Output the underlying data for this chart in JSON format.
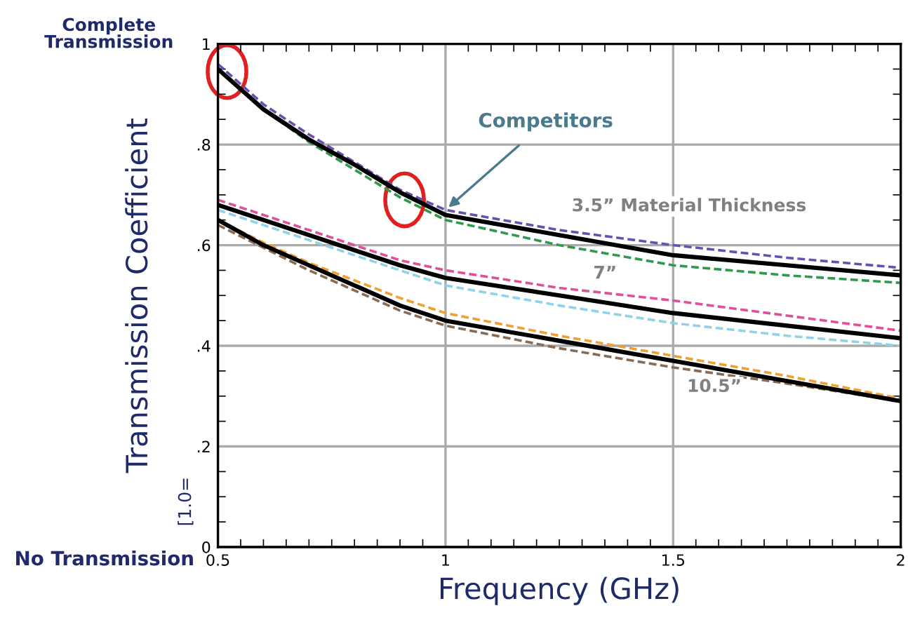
{
  "chart_data": {
    "type": "line",
    "xlabel": "Frequency (GHz)",
    "ylabel": "Transmission Coefficient",
    "x": [
      0.5,
      0.6,
      0.7,
      0.8,
      0.9,
      1.0,
      1.25,
      1.5,
      1.75,
      2.0
    ],
    "xlim": [
      0.5,
      2
    ],
    "ylim": [
      0,
      1
    ],
    "xticks": [
      0.5,
      1,
      1.5,
      2
    ],
    "yticks": [
      0,
      {
        "value": 0.2,
        "label": ".2"
      },
      {
        "value": 0.4,
        "label": ".4"
      },
      {
        "value": 0.6,
        "label": ".6"
      },
      {
        "value": 0.8,
        "label": ".8"
      },
      1
    ],
    "grid": true,
    "legend": false,
    "marker": "none",
    "series": [
      {
        "color": "#6a4fb0",
        "line_style": "dashed",
        "values": [
          0.96,
          0.88,
          0.82,
          0.765,
          0.71,
          0.67,
          0.63,
          0.6,
          0.575,
          0.555
        ]
      },
      {
        "color": "#2e9a4a",
        "line_style": "dashed",
        "values": [
          0.95,
          0.87,
          0.805,
          0.75,
          0.695,
          0.65,
          0.6,
          0.56,
          0.54,
          0.525
        ]
      },
      {
        "color": "#000000",
        "line_style": "solid",
        "values": [
          0.95,
          0.87,
          0.81,
          0.76,
          0.705,
          0.66,
          0.62,
          0.58,
          0.56,
          0.54
        ]
      },
      {
        "color": "#e0509a",
        "line_style": "dashed",
        "values": [
          0.69,
          0.66,
          0.63,
          0.6,
          0.57,
          0.55,
          0.515,
          0.49,
          0.46,
          0.43
        ]
      },
      {
        "color": "#8fd3e8",
        "line_style": "dashed",
        "values": [
          0.67,
          0.64,
          0.61,
          0.58,
          0.55,
          0.52,
          0.48,
          0.445,
          0.42,
          0.4
        ]
      },
      {
        "color": "#000000",
        "line_style": "solid",
        "values": [
          0.68,
          0.65,
          0.62,
          0.59,
          0.56,
          0.535,
          0.5,
          0.465,
          0.44,
          0.415
        ]
      },
      {
        "color": "#f0a030",
        "line_style": "dashed",
        "values": [
          0.65,
          0.605,
          0.565,
          0.53,
          0.495,
          0.465,
          0.42,
          0.38,
          0.34,
          0.295
        ]
      },
      {
        "color": "#8a6a50",
        "line_style": "dashed",
        "values": [
          0.64,
          0.595,
          0.55,
          0.51,
          0.47,
          0.44,
          0.395,
          0.357,
          0.325,
          0.29
        ]
      },
      {
        "color": "#000000",
        "line_style": "solid",
        "values": [
          0.65,
          0.6,
          0.56,
          0.52,
          0.48,
          0.45,
          0.41,
          0.37,
          0.33,
          0.29
        ]
      }
    ],
    "annotations": [
      "Complete Transmission",
      "No Transmission",
      "[1.0=",
      {
        "text": "Competitors",
        "x": 1.0,
        "y": 0.67
      },
      "3.5” Material Thickness",
      "7”",
      "10.5”"
    ]
  }
}
